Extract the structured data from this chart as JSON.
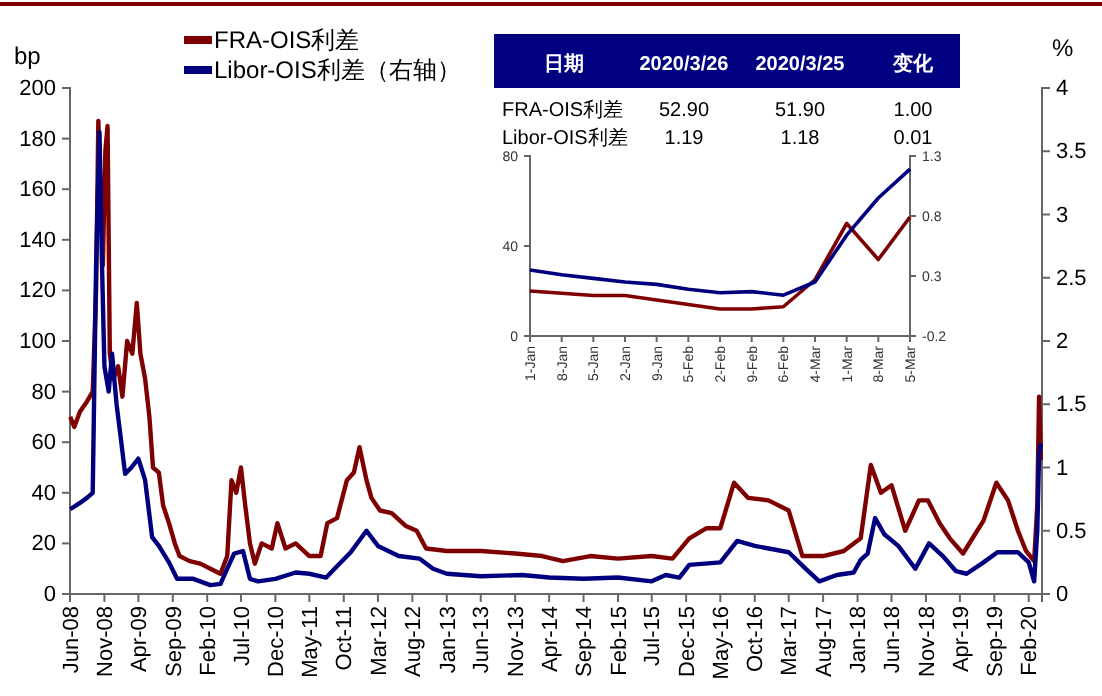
{
  "chart_data": [
    {
      "type": "line",
      "ylabel": "bp",
      "y2label": "%",
      "legend": "top left",
      "grid": false,
      "marker": "none",
      "line_style": "solid",
      "xlim": [
        "2008-06-01",
        "2020-03-31"
      ],
      "xticks": [
        {
          "value": "2008-06-01",
          "label": "Jun-08"
        },
        {
          "value": "2008-11-01",
          "label": "Nov-08"
        },
        {
          "value": "2009-04-01",
          "label": "Apr-09"
        },
        {
          "value": "2009-09-01",
          "label": "Sep-09"
        },
        {
          "value": "2010-02-01",
          "label": "Feb-10"
        },
        {
          "value": "2010-07-01",
          "label": "Jul-10"
        },
        {
          "value": "2010-12-01",
          "label": "Dec-10"
        },
        {
          "value": "2011-05-01",
          "label": "May-11"
        },
        {
          "value": "2011-10-01",
          "label": "Oct-11"
        },
        {
          "value": "2012-03-01",
          "label": "Mar-12"
        },
        {
          "value": "2012-08-01",
          "label": "Aug-12"
        },
        {
          "value": "2013-01-01",
          "label": "Jan-13"
        },
        {
          "value": "2013-06-01",
          "label": "Jun-13"
        },
        {
          "value": "2013-11-01",
          "label": "Nov-13"
        },
        {
          "value": "2014-04-01",
          "label": "Apr-14"
        },
        {
          "value": "2014-09-01",
          "label": "Sep-14"
        },
        {
          "value": "2015-02-01",
          "label": "Feb-15"
        },
        {
          "value": "2015-07-01",
          "label": "Jul-15"
        },
        {
          "value": "2015-12-01",
          "label": "Dec-15"
        },
        {
          "value": "2016-05-01",
          "label": "May-16"
        },
        {
          "value": "2016-10-01",
          "label": "Oct-16"
        },
        {
          "value": "2017-03-01",
          "label": "Mar-17"
        },
        {
          "value": "2017-08-01",
          "label": "Aug-17"
        },
        {
          "value": "2018-01-01",
          "label": "Jan-18"
        },
        {
          "value": "2018-06-01",
          "label": "Jun-18"
        },
        {
          "value": "2018-11-01",
          "label": "Nov-18"
        },
        {
          "value": "2019-04-01",
          "label": "Apr-19"
        },
        {
          "value": "2019-09-01",
          "label": "Sep-19"
        },
        {
          "value": "2020-02-01",
          "label": "Feb-20"
        }
      ],
      "ylim": [
        0,
        200
      ],
      "yticks": [
        0,
        20,
        40,
        60,
        80,
        100,
        120,
        140,
        160,
        180,
        200
      ],
      "y2lim": [
        0,
        4
      ],
      "y2ticks": [
        0,
        0.5,
        1,
        1.5,
        2,
        2.5,
        3,
        3.5,
        4
      ],
      "series": [
        {
          "name": "FRA-OIS利差",
          "color": "#7f0000",
          "x": [
            "2008-06-02",
            "2008-06-20",
            "2008-07-15",
            "2008-08-15",
            "2008-09-10",
            "2008-09-25",
            "2008-10-05",
            "2008-10-15",
            "2008-10-25",
            "2008-11-05",
            "2008-11-15",
            "2008-11-25",
            "2008-12-10",
            "2009-01-01",
            "2009-01-20",
            "2009-02-10",
            "2009-03-05",
            "2009-03-25",
            "2009-04-10",
            "2009-05-01",
            "2009-05-20",
            "2009-06-05",
            "2009-07-01",
            "2009-07-20",
            "2009-08-15",
            "2009-09-10",
            "2009-10-01",
            "2009-11-15",
            "2010-01-01",
            "2010-02-15",
            "2010-04-01",
            "2010-05-01",
            "2010-05-20",
            "2010-06-10",
            "2010-07-01",
            "2010-07-20",
            "2010-08-10",
            "2010-09-01",
            "2010-10-01",
            "2010-11-15",
            "2010-12-10",
            "2011-01-15",
            "2011-03-01",
            "2011-05-01",
            "2011-06-20",
            "2011-07-20",
            "2011-09-01",
            "2011-10-15",
            "2011-11-15",
            "2011-12-10",
            "2012-01-10",
            "2012-02-01",
            "2012-03-10",
            "2012-05-01",
            "2012-07-01",
            "2012-08-20",
            "2012-10-01",
            "2013-01-01",
            "2013-06-01",
            "2013-11-01",
            "2014-03-01",
            "2014-06-01",
            "2014-10-01",
            "2015-02-01",
            "2015-07-01",
            "2015-10-01",
            "2015-12-15",
            "2016-03-01",
            "2016-05-01",
            "2016-07-01",
            "2016-09-01",
            "2016-12-01",
            "2017-03-01",
            "2017-05-01",
            "2017-08-01",
            "2017-11-01",
            "2018-01-15",
            "2018-03-01",
            "2018-04-15",
            "2018-06-01",
            "2018-08-01",
            "2018-10-01",
            "2018-11-10",
            "2019-01-01",
            "2019-02-15",
            "2019-04-15",
            "2019-07-15",
            "2019-09-10",
            "2019-11-01",
            "2019-12-15",
            "2020-01-20",
            "2020-02-25",
            "2020-03-10",
            "2020-03-18",
            "2020-03-26"
          ],
          "values": [
            70,
            66,
            72,
            76,
            80,
            120,
            187,
            160,
            130,
            175,
            185,
            95,
            85,
            90,
            78,
            100,
            95,
            115,
            95,
            85,
            70,
            50,
            48,
            35,
            28,
            20,
            15,
            13,
            12,
            10,
            8,
            15,
            45,
            40,
            50,
            35,
            20,
            12,
            20,
            18,
            28,
            18,
            20,
            15,
            15,
            28,
            30,
            45,
            48,
            58,
            45,
            38,
            33,
            32,
            27,
            25,
            18,
            17,
            17,
            16,
            15,
            13,
            15,
            14,
            15,
            14,
            22,
            26,
            26,
            44,
            38,
            37,
            33,
            15,
            15,
            17,
            22,
            51,
            40,
            43,
            25,
            37,
            37,
            28,
            22,
            16,
            29,
            44,
            37,
            25,
            17,
            13,
            35,
            78,
            52.9
          ]
        },
        {
          "name": "Libor-OIS利差（右轴）",
          "color": "#00007f",
          "axis": "y2",
          "x": [
            "2008-06-02",
            "2008-07-15",
            "2008-08-15",
            "2008-09-10",
            "2008-09-25",
            "2008-10-10",
            "2008-10-20",
            "2008-11-01",
            "2008-11-20",
            "2008-12-05",
            "2008-12-25",
            "2009-01-15",
            "2009-02-01",
            "2009-03-01",
            "2009-04-01",
            "2009-05-01",
            "2009-06-01",
            "2009-07-01",
            "2009-08-15",
            "2009-09-20",
            "2009-12-01",
            "2010-02-15",
            "2010-04-01",
            "2010-05-01",
            "2010-06-01",
            "2010-07-10",
            "2010-08-10",
            "2010-09-15",
            "2010-12-01",
            "2011-03-01",
            "2011-05-01",
            "2011-07-15",
            "2011-09-01",
            "2011-11-01",
            "2012-01-10",
            "2012-03-01",
            "2012-06-01",
            "2012-09-01",
            "2012-11-01",
            "2013-01-01",
            "2013-06-01",
            "2013-12-01",
            "2014-04-01",
            "2014-09-01",
            "2015-02-01",
            "2015-07-01",
            "2015-09-01",
            "2015-11-01",
            "2015-12-15",
            "2016-05-01",
            "2016-07-15",
            "2016-10-01",
            "2017-01-01",
            "2017-03-01",
            "2017-05-15",
            "2017-07-15",
            "2017-10-01",
            "2017-12-15",
            "2018-01-15",
            "2018-02-15",
            "2018-03-20",
            "2018-05-01",
            "2018-07-01",
            "2018-09-15",
            "2018-11-15",
            "2019-01-15",
            "2019-03-15",
            "2019-05-01",
            "2019-07-15",
            "2019-09-15",
            "2019-12-15",
            "2020-02-01",
            "2020-02-25",
            "2020-03-10",
            "2020-03-18",
            "2020-03-26"
          ],
          "values": [
            0.67,
            0.72,
            0.76,
            0.8,
            2.6,
            3.65,
            2.7,
            1.8,
            1.6,
            1.9,
            1.5,
            1.2,
            0.95,
            1.0,
            1.07,
            0.9,
            0.45,
            0.38,
            0.25,
            0.12,
            0.12,
            0.07,
            0.08,
            0.2,
            0.32,
            0.34,
            0.12,
            0.1,
            0.12,
            0.17,
            0.16,
            0.13,
            0.22,
            0.33,
            0.5,
            0.38,
            0.3,
            0.28,
            0.2,
            0.16,
            0.14,
            0.15,
            0.13,
            0.12,
            0.13,
            0.1,
            0.15,
            0.13,
            0.23,
            0.25,
            0.42,
            0.38,
            0.35,
            0.33,
            0.2,
            0.1,
            0.15,
            0.17,
            0.27,
            0.32,
            0.6,
            0.47,
            0.38,
            0.2,
            0.4,
            0.3,
            0.18,
            0.16,
            0.25,
            0.33,
            0.33,
            0.25,
            0.1,
            0.5,
            1.1,
            1.19
          ]
        }
      ]
    },
    {
      "type": "line",
      "grid": false,
      "marker": "none",
      "line_style": "solid",
      "categories": [
        "1-Jan",
        "8-Jan",
        "5-Jan",
        "2-Jan",
        "9-Jan",
        "5-Feb",
        "2-Feb",
        "9-Feb",
        "6-Feb",
        "4-Mar",
        "1-Mar",
        "8-Mar",
        "5-Mar"
      ],
      "ylim": [
        0,
        80
      ],
      "yticks": [
        0,
        40,
        80
      ],
      "y2lim": [
        -0.2,
        1.3
      ],
      "y2ticks": [
        -0.2,
        0.3,
        0.8,
        1.3
      ],
      "series": [
        {
          "color": "#7f0000",
          "values": [
            20,
            19,
            18,
            18,
            16,
            14,
            12,
            12,
            13,
            25,
            50,
            34,
            52.9
          ]
        },
        {
          "color": "#00007f",
          "axis": "y2",
          "values": [
            0.35,
            0.31,
            0.28,
            0.25,
            0.23,
            0.19,
            0.16,
            0.17,
            0.14,
            0.25,
            0.64,
            0.95,
            1.19
          ]
        }
      ]
    },
    {
      "type": "other",
      "annotations": [
        "日期",
        "2020/3/26",
        "2020/3/25",
        "变化",
        "FRA-OIS利差",
        "52.90",
        "51.90",
        "1.00",
        "Libor-OIS利差",
        "1.19",
        "1.18",
        "0.01"
      ]
    }
  ]
}
